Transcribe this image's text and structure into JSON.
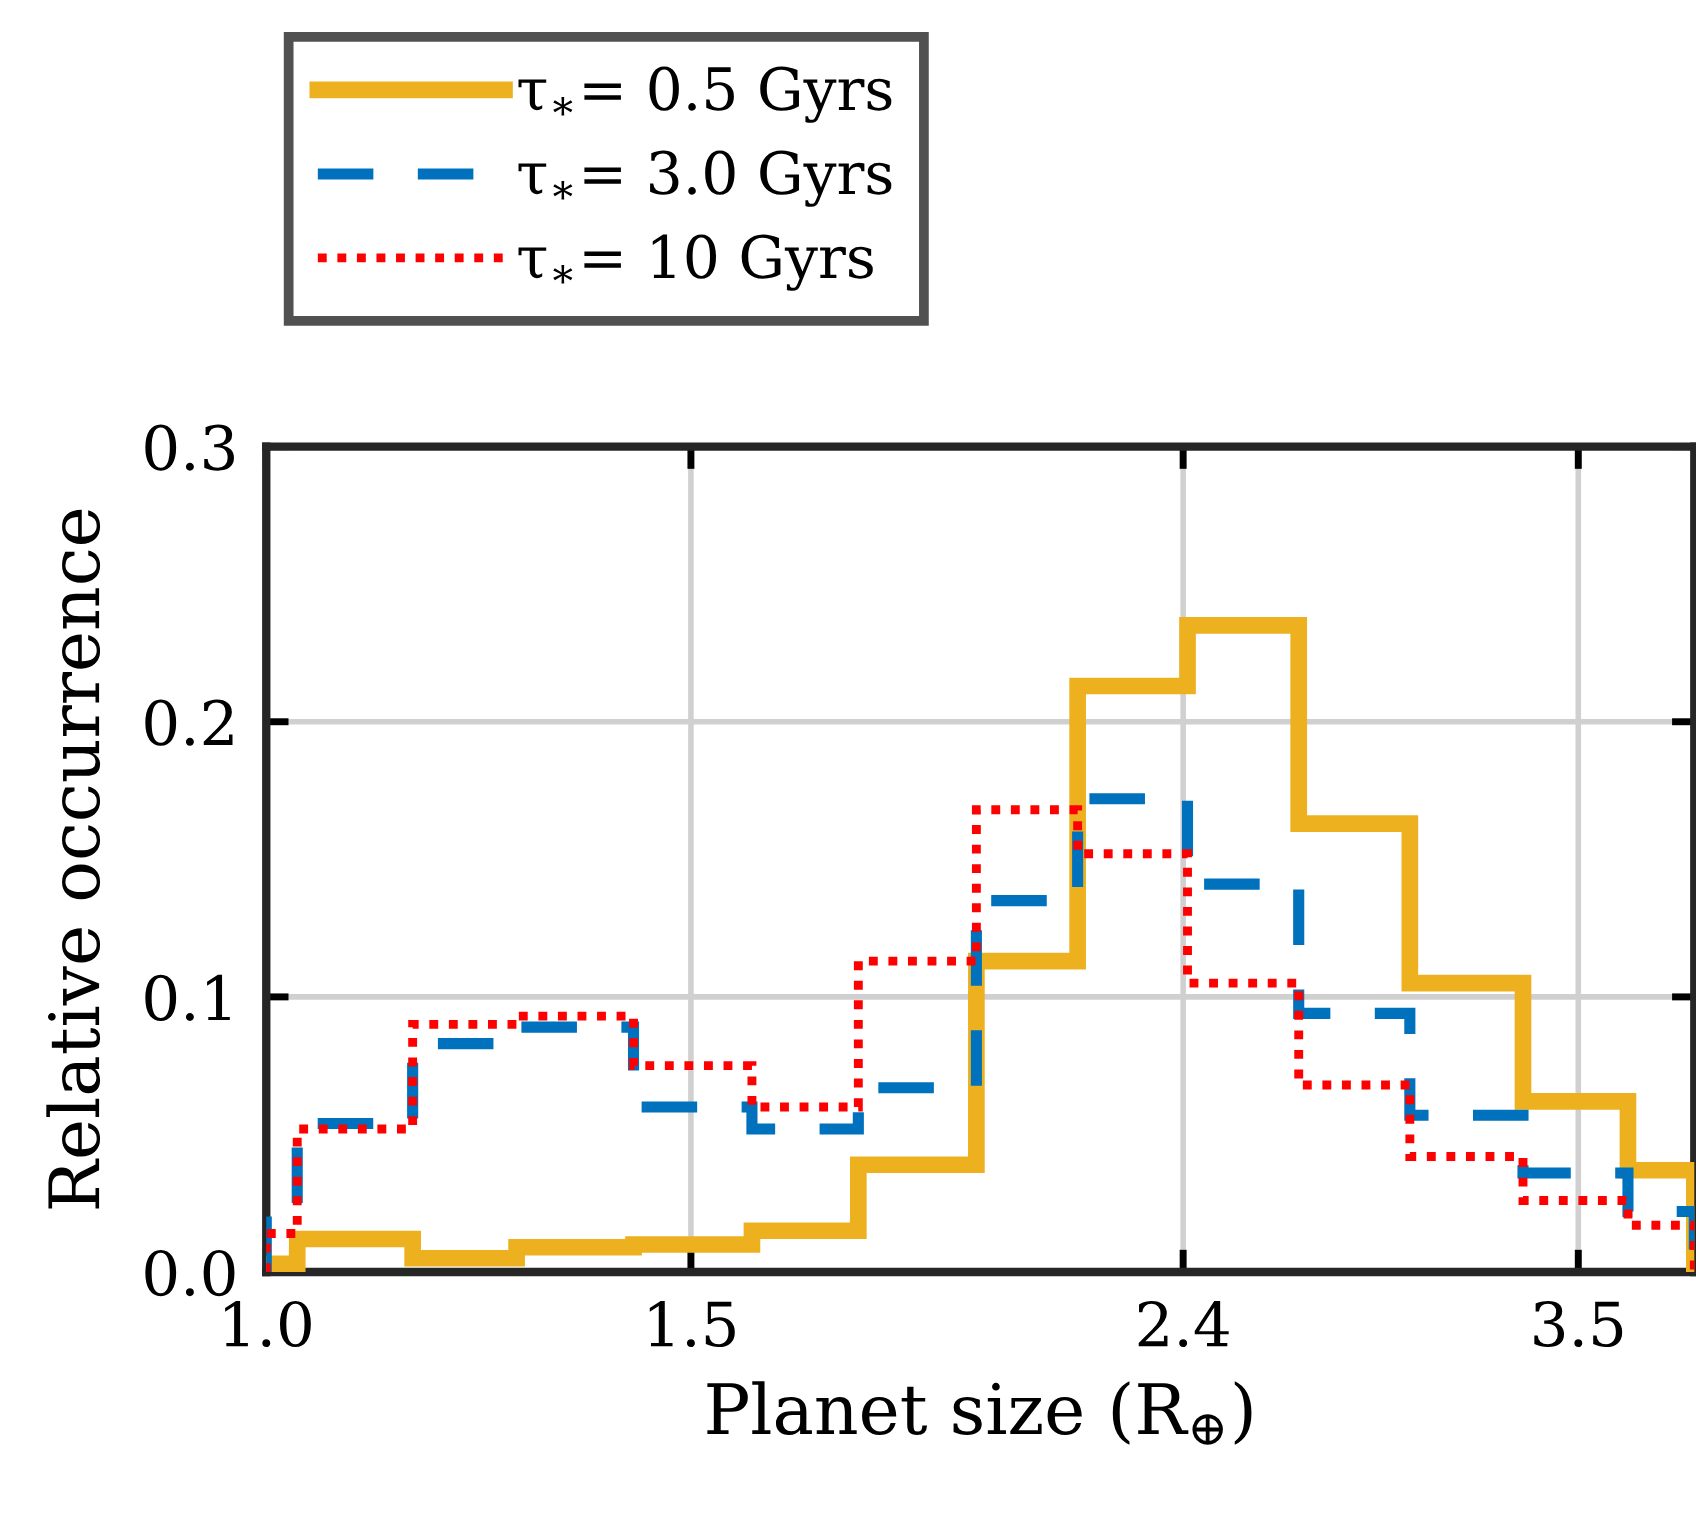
{
  "chart_data": {
    "type": "histogram",
    "xlabel": "Planet size (R$_{⊕}$)",
    "ylabel": "Relative occurrence",
    "log": "x",
    "bins": [
      1.0,
      1.03,
      1.15,
      1.27,
      1.42,
      1.59,
      1.76,
      1.97,
      2.17,
      2.41,
      2.68,
      2.98,
      3.32,
      3.67,
      3.91
    ],
    "series": [
      {
        "name": "τ$_{∗}$= 0.5 Gyrs",
        "color": "#edb120",
        "line_style": "solid",
        "values": [
          0.003,
          0.012,
          0.005,
          0.009,
          0.01,
          0.015,
          0.039,
          0.113,
          0.213,
          0.235,
          0.163,
          0.105,
          0.062,
          0.037
        ]
      },
      {
        "name": "τ$_{∗}$= 3.0 Gyrs",
        "color": "#0072bd",
        "line_style": "dashed",
        "values": [
          0.023,
          0.054,
          0.083,
          0.089,
          0.06,
          0.052,
          0.067,
          0.135,
          0.172,
          0.141,
          0.094,
          0.057,
          0.036,
          0.022
        ]
      },
      {
        "name": "τ$_{∗}$= 10 Gyrs",
        "color": "#ff0000",
        "line_style": "dotted",
        "values": [
          0.014,
          0.052,
          0.09,
          0.093,
          0.075,
          0.06,
          0.113,
          0.168,
          0.152,
          0.105,
          0.068,
          0.042,
          0.026,
          0.017
        ]
      }
    ],
    "xlim": [
      1.0,
      3.91
    ],
    "xticks": [
      {
        "value": 1.0,
        "label": "1.0"
      },
      1.5,
      2.4,
      3.5
    ],
    "ylim": [
      0,
      0.3
    ],
    "yticks": [
      {
        "value": 0,
        "label": "0.0"
      },
      0.1,
      0.2,
      0.3
    ],
    "grid": true,
    "legend": "top left"
  }
}
